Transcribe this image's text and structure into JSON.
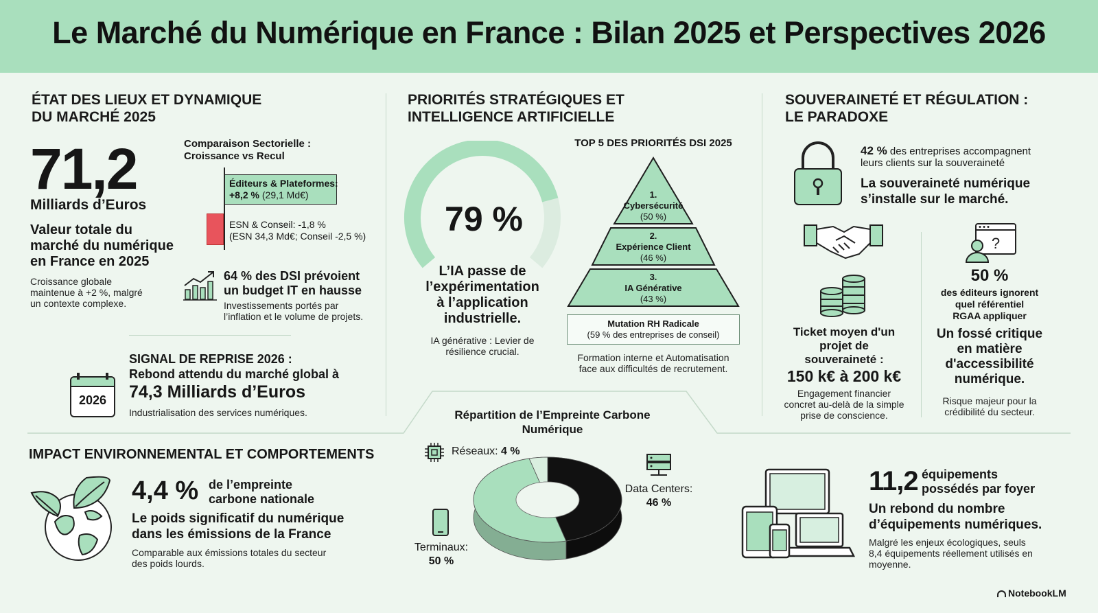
{
  "title": "Le Marché du Numérique en France : Bilan 2025 et Perspectives 2026",
  "market": {
    "heading": [
      "ÉTAT DES LIEUX ET DYNAMIQUE",
      "DU MARCHÉ 2025"
    ],
    "big_number": "71,2",
    "unit": "Milliards d’Euros",
    "desc_lines": [
      "Valeur totale du",
      "marché du numérique",
      "en France en 2025"
    ],
    "note_lines": [
      "Croissance globale",
      "maintenue à +2 %, malgré",
      "un contexte complexe."
    ],
    "comparison": {
      "title_lines": [
        "Comparaison Sectorielle :",
        "Croissance vs Recul"
      ],
      "growth_pct": 8.2,
      "decline_pct": -1.8,
      "growth_label": "Éditeurs & Plateformes:",
      "growth_value": "+8,2 %",
      "growth_detail": "(29,1 Md€)",
      "decline_label": "ESN & Conseil: -1,8 %",
      "decline_detail": "(ESN 34,3 Md€; Conseil -2,5 %)"
    },
    "budget": {
      "headline_lines": [
        "64 % des DSI prévoient",
        "un budget IT en hausse"
      ],
      "detail_lines": [
        "Investissements portés par",
        "l’inflation et le volume de projets."
      ]
    },
    "signal": {
      "year_badge": "2026",
      "line1": "SIGNAL DE REPRISE 2026 :",
      "line2": "Rebond attendu du marché global à",
      "line3": "74,3 Milliards d’Euros",
      "detail": "Industrialisation des services numériques."
    }
  },
  "ai": {
    "heading": [
      "PRIORITÉS STRATÉGIQUES ET",
      "INTELLIGENCE ARTIFICIELLE"
    ],
    "gauge_value": "79 %",
    "gauge_fraction": 0.79,
    "headline_lines": [
      "L’IA passe de",
      "l’expérimentation",
      "à l’application",
      "industrielle."
    ],
    "note_lines": [
      "IA générative : Levier de",
      "résilience crucial."
    ],
    "pyramid": {
      "title": "TOP 5 DES PRIORITÉS DSI 2025",
      "levels": [
        {
          "rank": "1.",
          "label": "Cybersécurité",
          "pct": "(50 %)"
        },
        {
          "rank": "2.",
          "label": "Expérience Client",
          "pct": "(46 %)"
        },
        {
          "rank": "3.",
          "label": "IA Générative",
          "pct": "(43 %)"
        }
      ],
      "base_label": "Mutation RH Radicale",
      "base_pct": "(59 % des entreprises de conseil)",
      "note_lines": [
        "Formation interne et Automatisation",
        "face aux difficultés de recrutement."
      ]
    }
  },
  "sovereignty": {
    "heading": [
      "SOUVERAINETÉ ET RÉGULATION :",
      "LE PARADOXE"
    ],
    "stat_bold": "42 %",
    "stat_lines": [
      "des entreprises accompagnent",
      "leurs clients sur la souveraineté"
    ],
    "headline_lines": [
      "La souveraineté numérique",
      "s’installe sur le marché."
    ],
    "ticket": {
      "title_lines": [
        "Ticket moyen d'un",
        "projet de",
        "souveraineté :"
      ],
      "value": "150 k€ à 200 k€",
      "detail_lines": [
        "Engagement financier",
        "concret au-delà de la simple",
        "prise de conscience."
      ]
    },
    "access": {
      "value": "50 %",
      "label_lines": [
        "des éditeurs ignorent",
        "quel référentiel",
        "RGAA appliquer"
      ],
      "headline_lines": [
        "Un fossé critique",
        "en matière",
        "d'accessibilité",
        "numérique."
      ],
      "detail_lines": [
        "Risque majeur pour la",
        "crédibilité du secteur."
      ]
    }
  },
  "environment": {
    "heading": "IMPACT ENVIRONNEMENTAL ET COMPORTEMENTS",
    "value": "4,4 %",
    "value_label_lines": [
      "de l’empreinte",
      "carbone nationale"
    ],
    "headline_lines": [
      "Le poids significatif du numérique",
      "dans les émissions de la France"
    ],
    "detail_lines": [
      "Comparable aux émissions totales du secteur",
      "des poids lourds."
    ]
  },
  "chart_data": {
    "type": "pie",
    "title_lines": [
      "Répartition de l’Empreinte Carbone",
      "Numérique"
    ],
    "slices": [
      {
        "label": "Data Centers:",
        "value": 46,
        "value_text": "46 %",
        "color": "#111111"
      },
      {
        "label": "Terminaux:",
        "value": 50,
        "value_text": "50 %",
        "color": "#a9dfbd"
      },
      {
        "label": "Réseaux:",
        "value": 4,
        "value_text": "4 %",
        "color": "#d9efdf"
      }
    ]
  },
  "devices": {
    "value": "11,2",
    "label_lines": [
      "équipements",
      "possédés par foyer"
    ],
    "headline_lines": [
      "Un rebond du nombre",
      "d’équipements numériques."
    ],
    "detail_lines": [
      "Malgré les enjeux écologiques, seuls",
      "8,4 équipements réellement utilisés en",
      "moyenne."
    ]
  },
  "brand": "NotebookLM",
  "colors": {
    "accent": "#a9dfbd",
    "decline": "#e8545c",
    "dark": "#111111",
    "background": "#eef6ef"
  }
}
